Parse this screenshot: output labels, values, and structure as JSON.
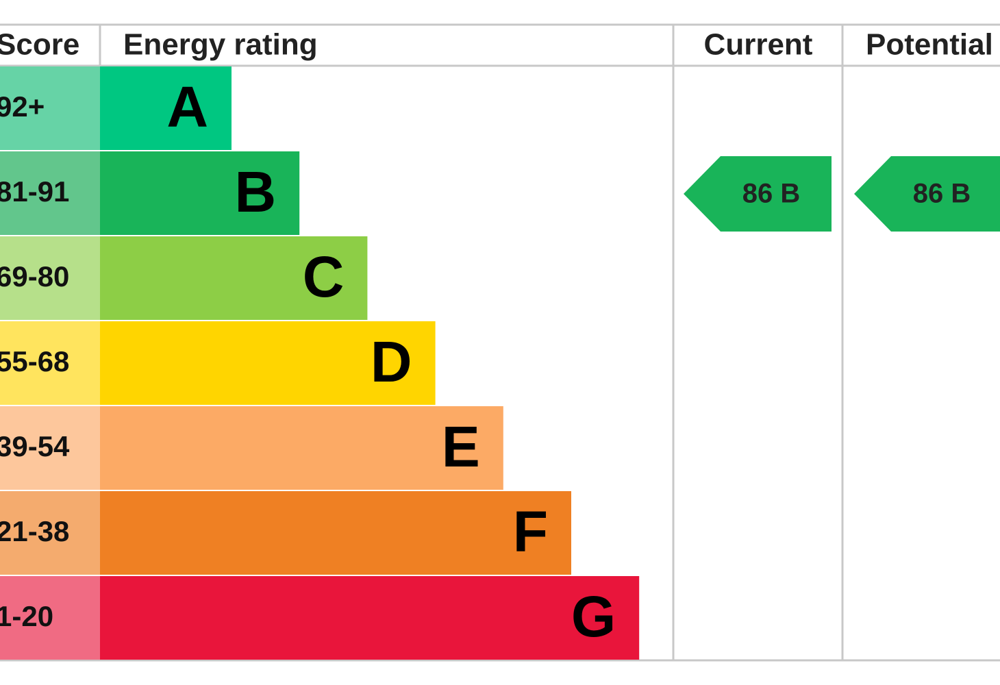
{
  "header": {
    "score": "Score",
    "energy_rating": "Energy rating",
    "current": "Current",
    "potential": "Potential"
  },
  "bands": [
    {
      "score": "92+",
      "letter": "A",
      "color": "#00c781",
      "score_color": "#66d3a6"
    },
    {
      "score": "81-91",
      "letter": "B",
      "color": "#19b459",
      "score_color": "#62c68c"
    },
    {
      "score": "69-80",
      "letter": "C",
      "color": "#8dce46",
      "score_color": "#b6e08a"
    },
    {
      "score": "55-68",
      "letter": "D",
      "color": "#ffd500",
      "score_color": "#ffe45e"
    },
    {
      "score": "39-54",
      "letter": "E",
      "color": "#fcaa65",
      "score_color": "#fdc79c"
    },
    {
      "score": "21-38",
      "letter": "F",
      "color": "#ef8023",
      "score_color": "#f4ab6e"
    },
    {
      "score": "1-20",
      "letter": "G",
      "color": "#e9153b",
      "score_color": "#f06b83"
    }
  ],
  "current": {
    "label": "86 B",
    "color": "#19b459"
  },
  "potential": {
    "label": "86 B",
    "color": "#19b459"
  }
}
